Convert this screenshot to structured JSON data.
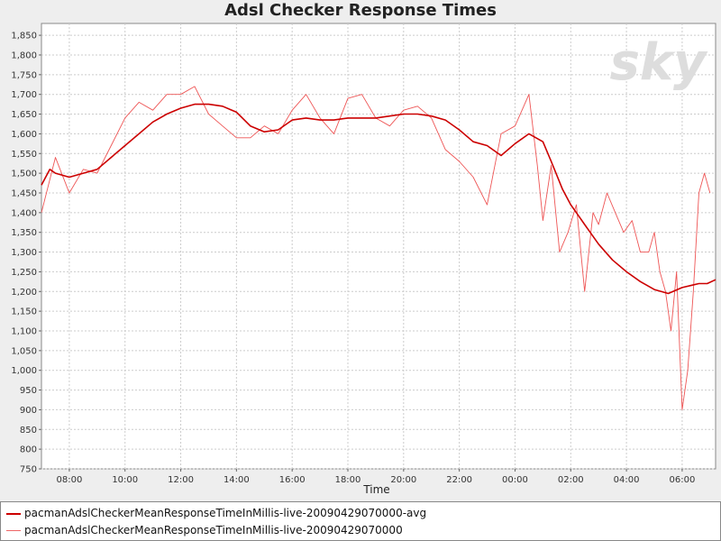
{
  "chart_data": {
    "type": "line",
    "title": "Adsl Checker Response Times",
    "xlabel": "Time",
    "ylabel": "",
    "x_unit": "hours since 07:00",
    "xlim": [
      0,
      24.2
    ],
    "ylim": [
      750,
      1880
    ],
    "grid": true,
    "legend_position": "bottom",
    "yticks": [
      750,
      800,
      850,
      900,
      950,
      1000,
      1050,
      1100,
      1150,
      1200,
      1250,
      1300,
      1350,
      1400,
      1450,
      1500,
      1550,
      1600,
      1650,
      1700,
      1750,
      1800,
      1850
    ],
    "ytick_labels": [
      "750",
      "800",
      "850",
      "900",
      "950",
      "1,000",
      "1,050",
      "1,100",
      "1,150",
      "1,200",
      "1,250",
      "1,300",
      "1,350",
      "1,400",
      "1,450",
      "1,500",
      "1,550",
      "1,600",
      "1,650",
      "1,700",
      "1,750",
      "1,800",
      "1,850"
    ],
    "xticks": [
      1,
      3,
      5,
      7,
      9,
      11,
      13,
      15,
      17,
      19,
      21,
      23
    ],
    "xtick_labels": [
      "08:00",
      "10:00",
      "12:00",
      "14:00",
      "16:00",
      "18:00",
      "20:00",
      "22:00",
      "00:00",
      "02:00",
      "04:00",
      "06:00"
    ],
    "series": [
      {
        "name": "pacmanAdslCheckerMeanResponseTimeInMillis-live-20090429070000-avg",
        "color": "#cc0000",
        "x": [
          0,
          0.3,
          0.5,
          1.0,
          1.5,
          2.0,
          2.5,
          3.0,
          3.5,
          4.0,
          4.5,
          5.0,
          5.5,
          6.0,
          6.5,
          7.0,
          7.5,
          8.0,
          8.5,
          9.0,
          9.5,
          10.0,
          10.5,
          11.0,
          11.5,
          12.0,
          12.5,
          13.0,
          13.5,
          14.0,
          14.5,
          15.0,
          15.5,
          16.0,
          16.5,
          17.0,
          17.5,
          18.0,
          18.3,
          18.7,
          19.0,
          19.2,
          19.5,
          20.0,
          20.5,
          21.0,
          21.5,
          22.0,
          22.5,
          23.0,
          23.3,
          23.6,
          23.9,
          24.2
        ],
        "values": [
          1470,
          1510,
          1500,
          1490,
          1500,
          1510,
          1540,
          1570,
          1600,
          1630,
          1650,
          1665,
          1675,
          1675,
          1670,
          1655,
          1620,
          1605,
          1610,
          1635,
          1640,
          1635,
          1635,
          1640,
          1640,
          1640,
          1645,
          1650,
          1650,
          1645,
          1635,
          1610,
          1580,
          1570,
          1545,
          1575,
          1600,
          1580,
          1530,
          1460,
          1420,
          1400,
          1370,
          1320,
          1280,
          1250,
          1225,
          1205,
          1195,
          1210,
          1215,
          1220,
          1220,
          1230
        ]
      },
      {
        "name": "pacmanAdslCheckerMeanResponseTimeInMillis-live-20090429070000",
        "color": "#ee5555",
        "x": [
          0,
          0.5,
          1.0,
          1.5,
          2.0,
          2.5,
          3.0,
          3.5,
          4.0,
          4.5,
          5.0,
          5.5,
          6.0,
          6.5,
          7.0,
          7.5,
          8.0,
          8.5,
          9.0,
          9.5,
          10.0,
          10.5,
          11.0,
          11.5,
          12.0,
          12.5,
          13.0,
          13.5,
          14.0,
          14.5,
          15.0,
          15.5,
          16.0,
          16.5,
          17.0,
          17.5,
          17.8,
          18.0,
          18.3,
          18.6,
          18.9,
          19.2,
          19.5,
          19.8,
          20.0,
          20.3,
          20.6,
          20.9,
          21.2,
          21.5,
          21.8,
          22.0,
          22.2,
          22.4,
          22.6,
          22.8,
          23.0,
          23.2,
          23.4,
          23.6,
          23.8,
          24.0
        ],
        "values": [
          1400,
          1540,
          1450,
          1510,
          1500,
          1570,
          1640,
          1680,
          1660,
          1700,
          1700,
          1720,
          1650,
          1620,
          1590,
          1590,
          1620,
          1600,
          1660,
          1700,
          1640,
          1600,
          1690,
          1700,
          1640,
          1620,
          1660,
          1670,
          1640,
          1560,
          1530,
          1490,
          1420,
          1600,
          1620,
          1700,
          1520,
          1380,
          1520,
          1300,
          1350,
          1420,
          1200,
          1400,
          1370,
          1450,
          1400,
          1350,
          1380,
          1300,
          1300,
          1350,
          1250,
          1200,
          1100,
          1250,
          900,
          1000,
          1200,
          1450,
          1500,
          1450
        ]
      }
    ]
  },
  "legend": {
    "avg_label": "pacmanAdslCheckerMeanResponseTimeInMillis-live-20090429070000-avg",
    "raw_label": "pacmanAdslCheckerMeanResponseTimeInMillis-live-20090429070000"
  },
  "watermark": "sky"
}
